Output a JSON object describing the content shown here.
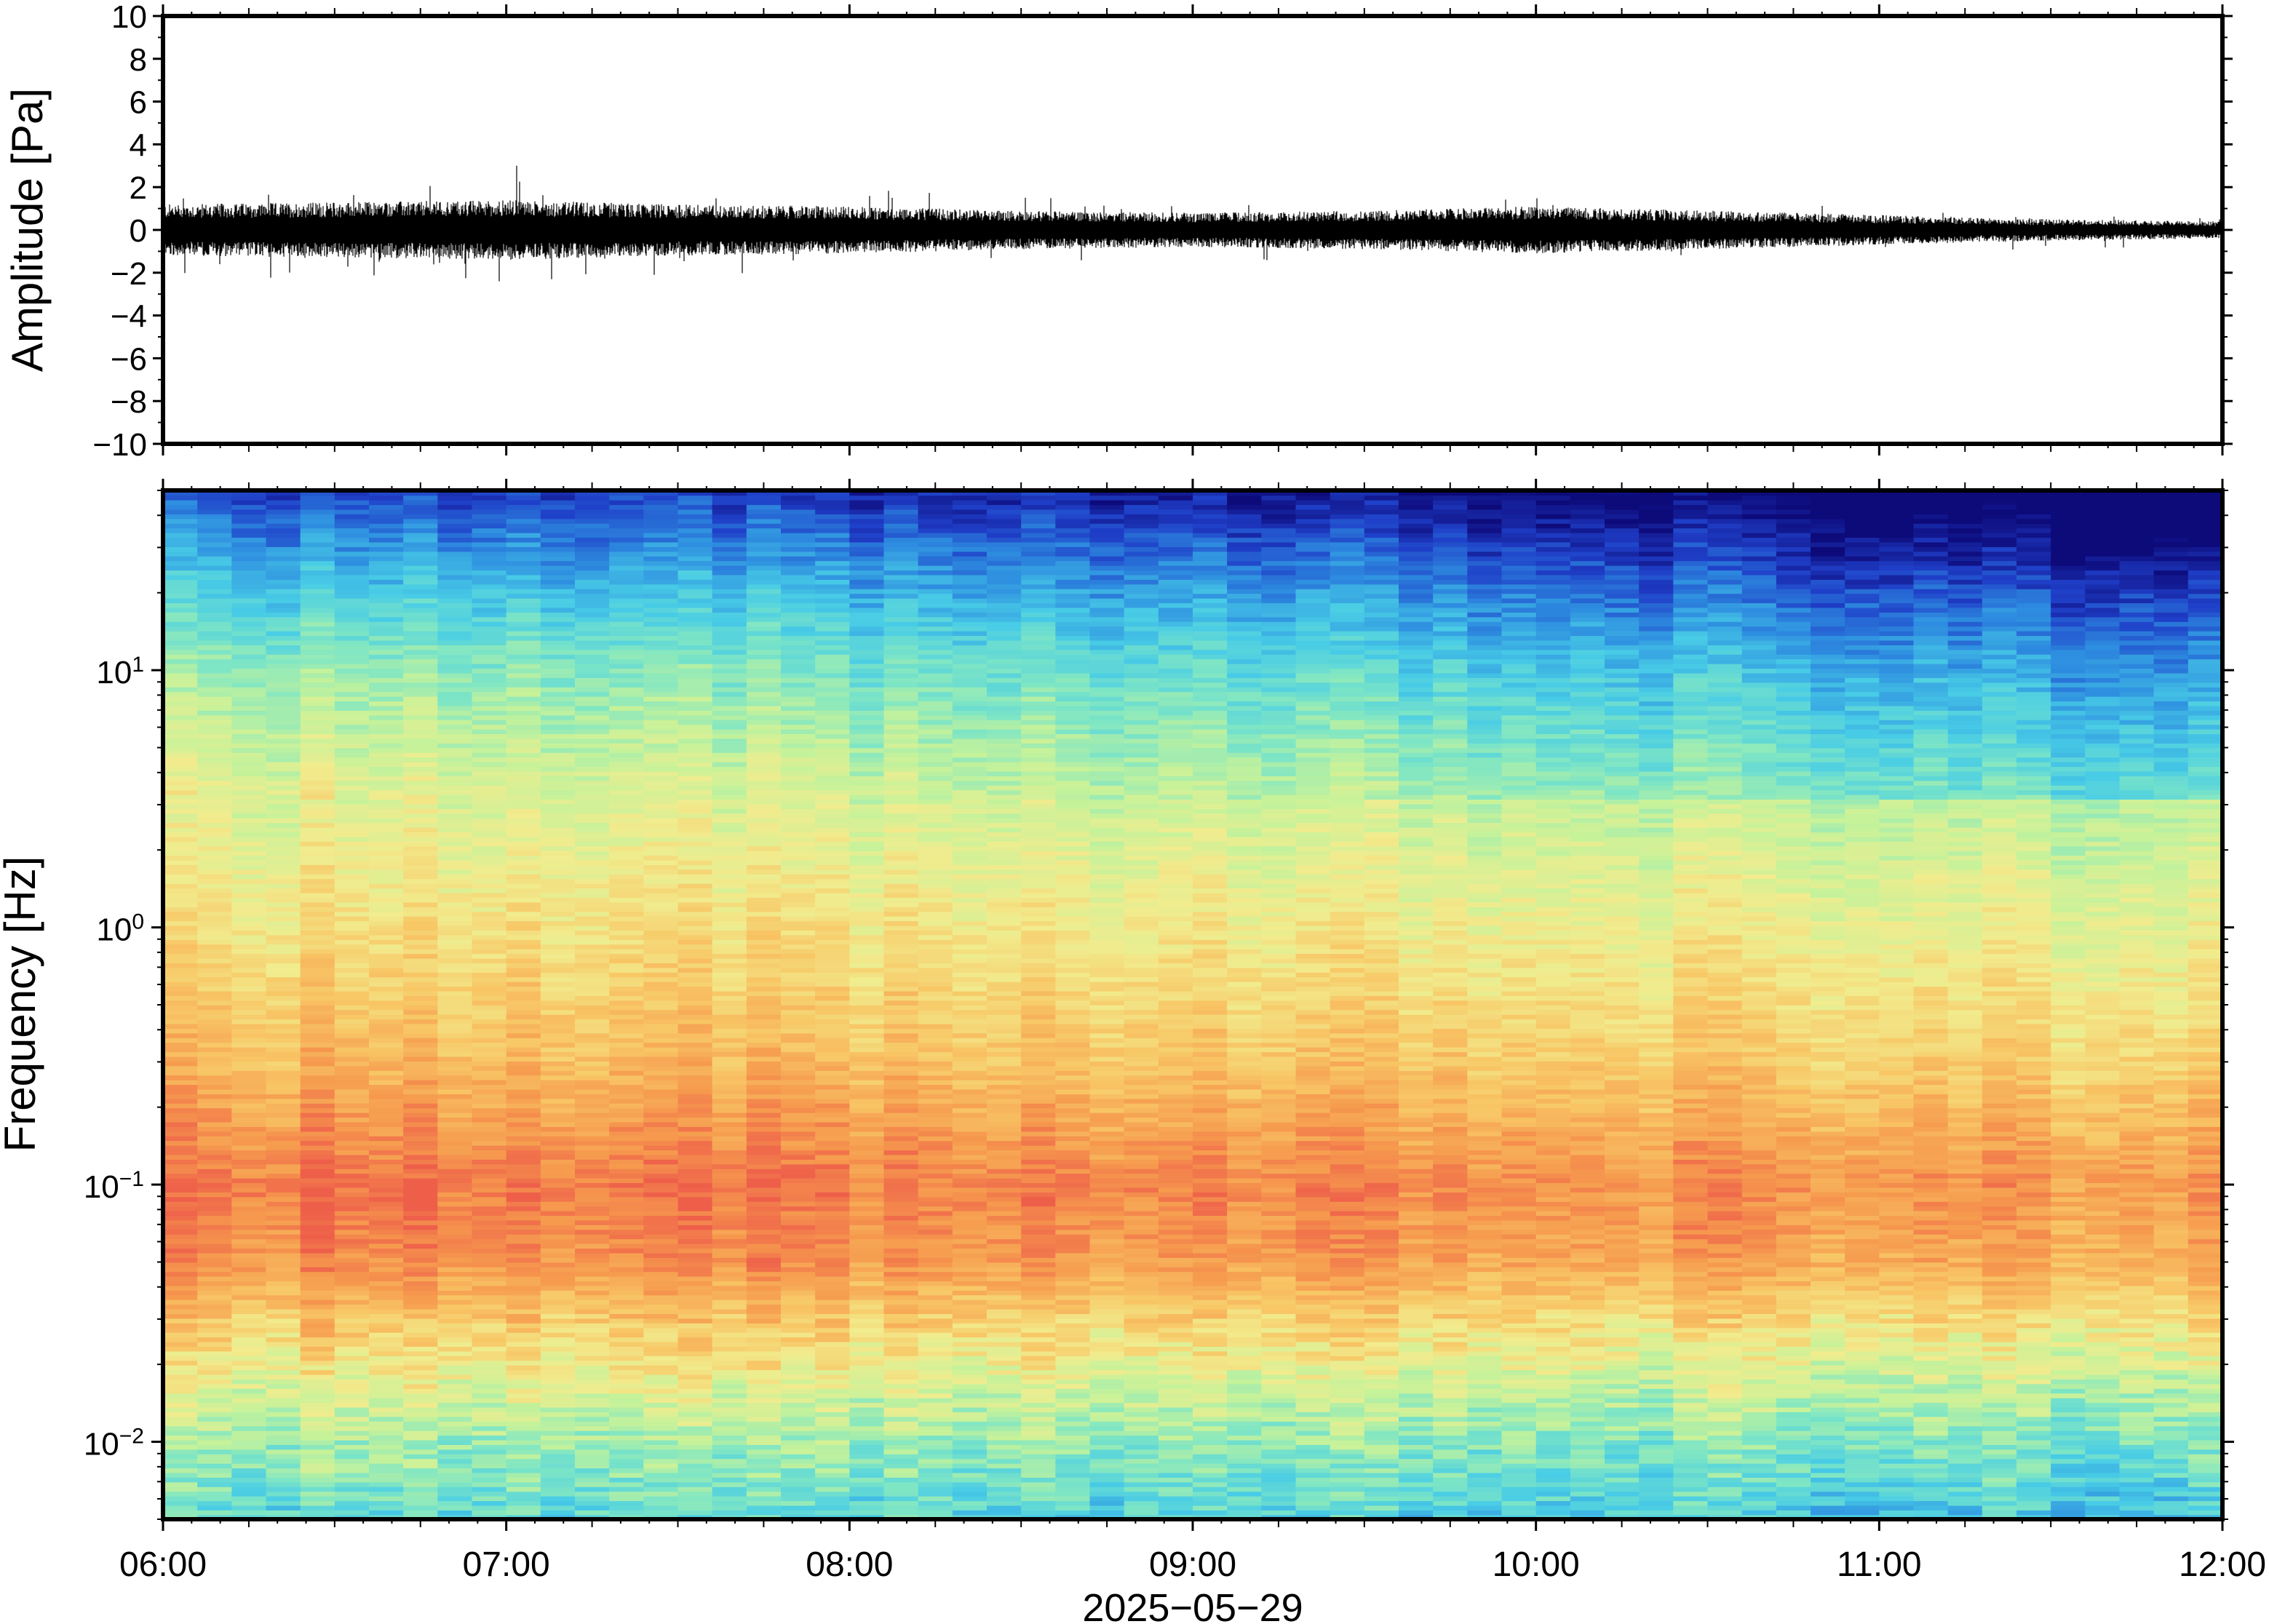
{
  "chart_data": [
    {
      "type": "line",
      "panel": "waveform",
      "title": "",
      "xlabel": "",
      "ylabel": "Amplitude [Pa]",
      "ylim": [
        -10,
        10
      ],
      "yticks": [
        -10,
        -8,
        -6,
        -4,
        -2,
        0,
        2,
        4,
        6,
        8,
        10
      ],
      "ytick_labels": [
        "−10",
        "−8",
        "−6",
        "−4",
        "−2",
        "0",
        "2",
        "4",
        "6",
        "8",
        "10"
      ],
      "xlim": [
        "06:00",
        "12:00"
      ],
      "series": [
        {
          "color": "#000000",
          "x_hours": [
            6.0,
            6.5,
            7.0,
            7.5,
            8.0,
            8.5,
            9.0,
            9.5,
            10.0,
            10.5,
            11.0,
            11.5,
            12.0
          ],
          "envelope_amp": [
            1.2,
            1.3,
            1.4,
            1.2,
            1.1,
            0.9,
            0.8,
            0.9,
            1.1,
            0.9,
            0.7,
            0.5,
            0.4
          ],
          "peak_max": 3.0,
          "peak_min": -2.4
        }
      ]
    },
    {
      "type": "heatmap",
      "panel": "spectrogram",
      "title": "",
      "xlabel": "2025−05−29",
      "ylabel": "Frequency [Hz]",
      "y_scale": "log",
      "ylim": [
        0.005,
        50
      ],
      "yticks": [
        {
          "value": 0.01,
          "base": "10",
          "exp": "−2"
        },
        {
          "value": 0.1,
          "base": "10",
          "exp": "−1"
        },
        {
          "value": 1,
          "base": "10",
          "exp": "0"
        },
        {
          "value": 10,
          "base": "10",
          "exp": "1"
        }
      ],
      "xlim": [
        "06:00",
        "12:00"
      ],
      "xticks": [
        "06:00",
        "07:00",
        "08:00",
        "09:00",
        "10:00",
        "11:00",
        "12:00"
      ],
      "colormap": [
        "#0d0a7a",
        "#1f3fc8",
        "#2e8ee0",
        "#48cce6",
        "#7fe6c4",
        "#c6f29a",
        "#f1ec8e",
        "#f8c766",
        "#f69a4e",
        "#ee5f4a"
      ],
      "time_columns": 60,
      "profile_log10f": [
        -2.3,
        -2.0,
        -1.6,
        -1.3,
        -1.0,
        -0.5,
        0.0,
        0.5,
        1.0,
        1.3,
        1.7
      ],
      "profile_level": [
        0.38,
        0.5,
        0.72,
        0.9,
        0.95,
        0.8,
        0.7,
        0.6,
        0.44,
        0.3,
        0.08
      ],
      "trend_over_time": [
        0.02,
        0.01,
        0.0,
        -0.01,
        -0.03,
        -0.05,
        -0.07
      ]
    }
  ]
}
